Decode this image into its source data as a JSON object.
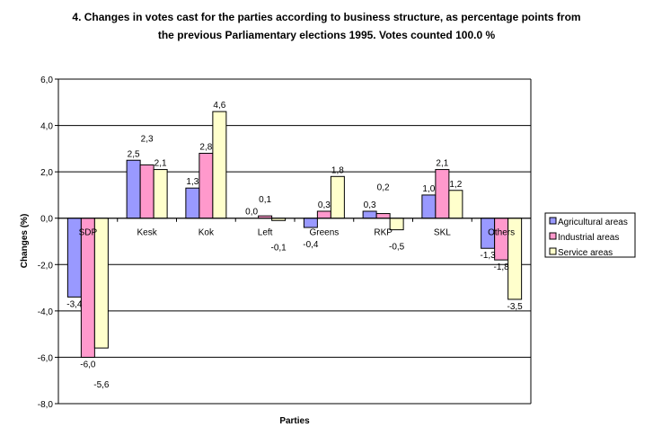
{
  "chart_data": {
    "type": "bar",
    "title_lines": [
      "4. Changes in votes cast for the parties according to business structure, as percentage points from",
      "the previous Parliamentary elections 1995. Votes counted 100.0 %"
    ],
    "xlabel": "Parties",
    "ylabel": "Changes (%)",
    "ylim": [
      -8,
      6
    ],
    "yticks": [
      "6,0",
      "4,0",
      "2,0",
      "0,0",
      "-2,0",
      "-4,0",
      "-6,0",
      "-8,0"
    ],
    "ytick_values": [
      6,
      4,
      2,
      0,
      -2,
      -4,
      -6,
      -8
    ],
    "grid": true,
    "legend_position": "right",
    "categories": [
      "SDP",
      "Kesk",
      "Kok",
      "Left",
      "Greens",
      "RKP",
      "SKL",
      "Others"
    ],
    "series": [
      {
        "name": "Agricultural areas",
        "color": "#9999ff",
        "values": [
          -3.4,
          2.5,
          1.3,
          0.0,
          -0.4,
          0.3,
          1.0,
          -1.3
        ],
        "labels": [
          "-3,4",
          "2,5",
          "1,3",
          "0,0",
          "-0,4",
          "0,3",
          "1,0",
          "-1,3"
        ]
      },
      {
        "name": "Industrial areas",
        "color": "#ff99cc",
        "values": [
          -6.0,
          2.3,
          2.8,
          0.1,
          0.3,
          0.2,
          2.1,
          -1.8
        ],
        "labels": [
          "-6,0",
          "2,3",
          "2,8",
          "0,1",
          "0,3",
          "0,2",
          "2,1",
          "-1,8"
        ]
      },
      {
        "name": "Service areas",
        "color": "#ffffcc",
        "values": [
          -5.6,
          2.1,
          4.6,
          -0.1,
          1.8,
          -0.5,
          1.2,
          -3.5
        ],
        "labels": [
          "-5,6",
          "2,1",
          "4,6",
          "-0,1",
          "1,8",
          "-0,5",
          "1,2",
          "-3,5"
        ]
      }
    ]
  }
}
